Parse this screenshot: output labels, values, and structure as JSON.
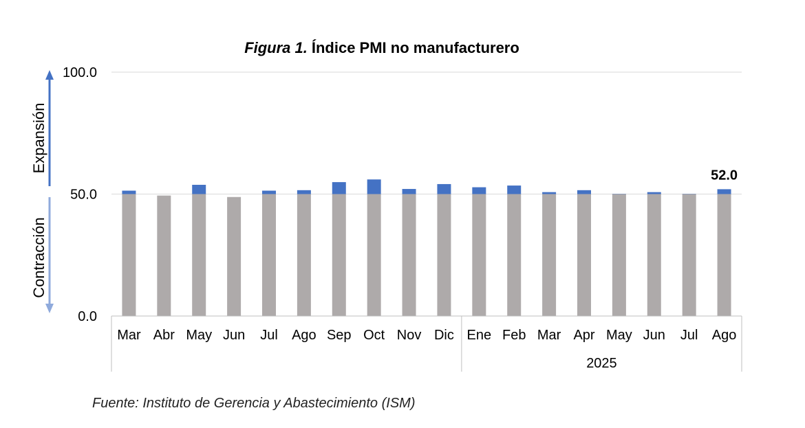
{
  "chart_data": {
    "type": "bar",
    "title_prefix": "Figura 1.",
    "title_main": "Índice PMI no manufacturero",
    "categories": [
      "Mar",
      "Abr",
      "May",
      "Jun",
      "Jul",
      "Ago",
      "Sep",
      "Oct",
      "Nov",
      "Dic",
      "Ene",
      "Feb",
      "Mar",
      "Apr",
      "May",
      "Jun",
      "Jul",
      "Ago"
    ],
    "category_groups": [
      {
        "label": "",
        "count": 10
      },
      {
        "label": "2025",
        "count": 8
      }
    ],
    "values": [
      51.4,
      49.4,
      53.8,
      48.8,
      51.4,
      51.6,
      54.9,
      56.0,
      52.1,
      54.1,
      52.8,
      53.5,
      50.8,
      51.6,
      50.1,
      50.8,
      50.1,
      52.0
    ],
    "baseline": 50.0,
    "ylim": [
      0,
      100
    ],
    "yticks": [
      "0.0",
      "50.0",
      "100.0"
    ],
    "grid": true,
    "colors": {
      "base": "#aeaaaa",
      "expansion": "#4472c4",
      "arrow_up": "#4472c4",
      "arrow_down": "#8faadc",
      "grid": "#d9d9d9"
    },
    "annotations": [
      {
        "category_index": 17,
        "text": "52.0"
      }
    ],
    "axis_labels": {
      "expansion": "Expansión",
      "contraction": "Contracción"
    }
  },
  "source_text": "Fuente: Instituto de Gerencia y Abastecimiento (ISM)"
}
